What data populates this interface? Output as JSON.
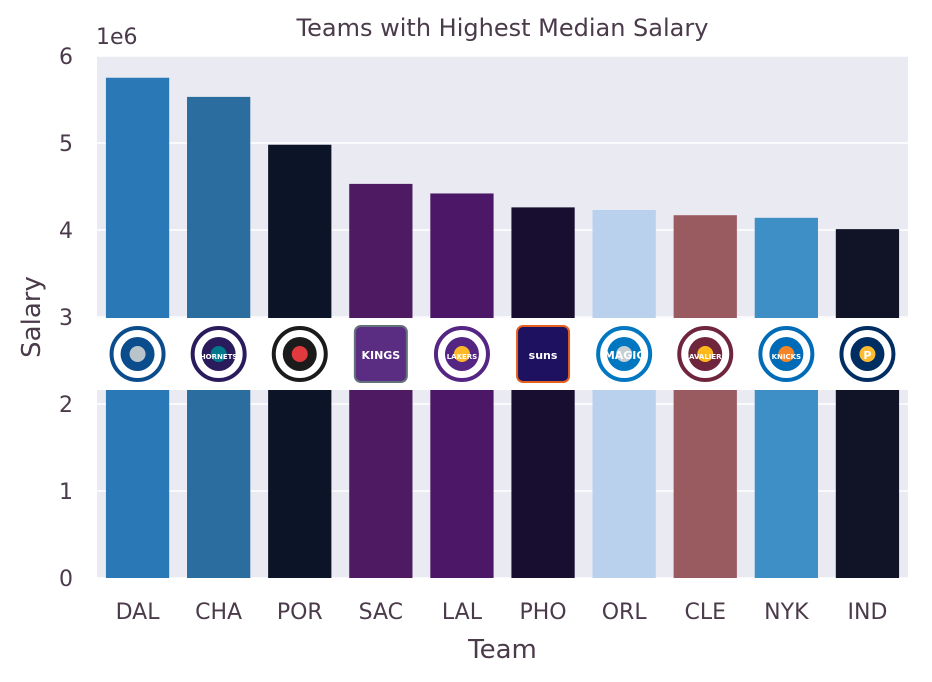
{
  "chart_data": {
    "type": "bar",
    "title": "Teams with Highest Median Salary",
    "xlabel": "Team",
    "ylabel": "Salary",
    "scale_label": "1e6",
    "ylim": [
      0,
      6000000
    ],
    "yticks": [
      "0",
      "1",
      "2",
      "3",
      "4",
      "5",
      "6"
    ],
    "grid": true,
    "categories": [
      "DAL",
      "CHA",
      "POR",
      "SAC",
      "LAL",
      "PHO",
      "ORL",
      "CLE",
      "NYK",
      "IND"
    ],
    "values": [
      5750000,
      5530000,
      4980000,
      4530000,
      4420000,
      4260000,
      4230000,
      4170000,
      4140000,
      4010000
    ],
    "colors": [
      "#2a78b5",
      "#2b6d9e",
      "#0c1428",
      "#4e1a62",
      "#4b1766",
      "#180f30",
      "#b9d1ec",
      "#9a5b60",
      "#3e8fc5",
      "#111327"
    ],
    "logos": [
      {
        "team": "DAL",
        "icon": "mavericks-logo-icon"
      },
      {
        "team": "CHA",
        "icon": "hornets-logo-icon",
        "text": "HORNETS"
      },
      {
        "team": "POR",
        "icon": "trail-blazers-logo-icon"
      },
      {
        "team": "SAC",
        "icon": "kings-logo-icon",
        "text": "KINGS"
      },
      {
        "team": "LAL",
        "icon": "lakers-logo-icon",
        "text": "LAKERS"
      },
      {
        "team": "PHO",
        "icon": "suns-logo-icon",
        "text": "suns"
      },
      {
        "team": "ORL",
        "icon": "magic-logo-icon",
        "text": "MAGIC"
      },
      {
        "team": "CLE",
        "icon": "cavaliers-logo-icon",
        "text": "CAVALIERS"
      },
      {
        "team": "NYK",
        "icon": "knicks-logo-icon",
        "text": "KNICKS"
      },
      {
        "team": "IND",
        "icon": "pacers-logo-icon",
        "text": "P"
      }
    ],
    "colors_ui": {
      "plot_bg": "#eaeaf2",
      "grid": "#ffffff",
      "text": "#4a3a4a",
      "logo_band": "#ffffff"
    }
  }
}
